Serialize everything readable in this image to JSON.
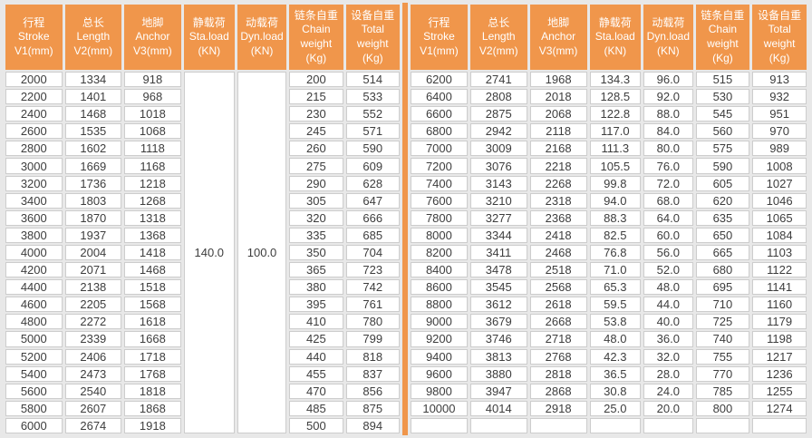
{
  "colors": {
    "page_bg": "#e8e8e8",
    "header_bg": "#f0964b",
    "divider": "#f0964b",
    "cell_border": "#cdcdcd",
    "cell_text": "#3d3d3d",
    "header_text": "#ffffff"
  },
  "tables": {
    "left": {
      "headers": [
        [
          "行程",
          "Stroke",
          "V1(mm)"
        ],
        [
          "总长",
          "Length",
          "V2(mm)"
        ],
        [
          "地脚",
          "Anchor",
          "V3(mm)"
        ],
        [
          "静载荷",
          "Sta.load",
          "(KN)"
        ],
        [
          "动载荷",
          "Dyn.load",
          "(KN)"
        ],
        [
          "链条自重",
          "Chain",
          "weight",
          "(Kg)"
        ],
        [
          "设备自重",
          "Total",
          "weight",
          "(Kg)"
        ]
      ],
      "merges": [
        {
          "col": 3,
          "value": "140.0"
        },
        {
          "col": 4,
          "value": "100.0"
        }
      ],
      "rows": [
        [
          "2000",
          "1334",
          "918",
          null,
          null,
          "200",
          "514"
        ],
        [
          "2200",
          "1401",
          "968",
          null,
          null,
          "215",
          "533"
        ],
        [
          "2400",
          "1468",
          "1018",
          null,
          null,
          "230",
          "552"
        ],
        [
          "2600",
          "1535",
          "1068",
          null,
          null,
          "245",
          "571"
        ],
        [
          "2800",
          "1602",
          "1118",
          null,
          null,
          "260",
          "590"
        ],
        [
          "3000",
          "1669",
          "1168",
          null,
          null,
          "275",
          "609"
        ],
        [
          "3200",
          "1736",
          "1218",
          null,
          null,
          "290",
          "628"
        ],
        [
          "3400",
          "1803",
          "1268",
          null,
          null,
          "305",
          "647"
        ],
        [
          "3600",
          "1870",
          "1318",
          null,
          null,
          "320",
          "666"
        ],
        [
          "3800",
          "1937",
          "1368",
          null,
          null,
          "335",
          "685"
        ],
        [
          "4000",
          "2004",
          "1418",
          null,
          null,
          "350",
          "704"
        ],
        [
          "4200",
          "2071",
          "1468",
          null,
          null,
          "365",
          "723"
        ],
        [
          "4400",
          "2138",
          "1518",
          null,
          null,
          "380",
          "742"
        ],
        [
          "4600",
          "2205",
          "1568",
          null,
          null,
          "395",
          "761"
        ],
        [
          "4800",
          "2272",
          "1618",
          null,
          null,
          "410",
          "780"
        ],
        [
          "5000",
          "2339",
          "1668",
          null,
          null,
          "425",
          "799"
        ],
        [
          "5200",
          "2406",
          "1718",
          null,
          null,
          "440",
          "818"
        ],
        [
          "5400",
          "2473",
          "1768",
          null,
          null,
          "455",
          "837"
        ],
        [
          "5600",
          "2540",
          "1818",
          null,
          null,
          "470",
          "856"
        ],
        [
          "5800",
          "2607",
          "1868",
          null,
          null,
          "485",
          "875"
        ],
        [
          "6000",
          "2674",
          "1918",
          null,
          null,
          "500",
          "894"
        ]
      ]
    },
    "right": {
      "headers": [
        [
          "行程",
          "Stroke",
          "V1(mm)"
        ],
        [
          "总长",
          "Length",
          "V2(mm)"
        ],
        [
          "地脚",
          "Anchor",
          "V3(mm)"
        ],
        [
          "静载荷",
          "Sta.load",
          "(KN)"
        ],
        [
          "动载荷",
          "Dyn.load",
          "(KN)"
        ],
        [
          "链条自重",
          "Chain",
          "weight",
          "(Kg)"
        ],
        [
          "设备自重",
          "Total",
          "weight",
          "(Kg)"
        ]
      ],
      "merges": [],
      "rows": [
        [
          "6200",
          "2741",
          "1968",
          "134.3",
          "96.0",
          "515",
          "913"
        ],
        [
          "6400",
          "2808",
          "2018",
          "128.5",
          "92.0",
          "530",
          "932"
        ],
        [
          "6600",
          "2875",
          "2068",
          "122.8",
          "88.0",
          "545",
          "951"
        ],
        [
          "6800",
          "2942",
          "2118",
          "117.0",
          "84.0",
          "560",
          "970"
        ],
        [
          "7000",
          "3009",
          "2168",
          "111.3",
          "80.0",
          "575",
          "989"
        ],
        [
          "7200",
          "3076",
          "2218",
          "105.5",
          "76.0",
          "590",
          "1008"
        ],
        [
          "7400",
          "3143",
          "2268",
          "99.8",
          "72.0",
          "605",
          "1027"
        ],
        [
          "7600",
          "3210",
          "2318",
          "94.0",
          "68.0",
          "620",
          "1046"
        ],
        [
          "7800",
          "3277",
          "2368",
          "88.3",
          "64.0",
          "635",
          "1065"
        ],
        [
          "8000",
          "3344",
          "2418",
          "82.5",
          "60.0",
          "650",
          "1084"
        ],
        [
          "8200",
          "3411",
          "2468",
          "76.8",
          "56.0",
          "665",
          "1103"
        ],
        [
          "8400",
          "3478",
          "2518",
          "71.0",
          "52.0",
          "680",
          "1122"
        ],
        [
          "8600",
          "3545",
          "2568",
          "65.3",
          "48.0",
          "695",
          "1141"
        ],
        [
          "8800",
          "3612",
          "2618",
          "59.5",
          "44.0",
          "710",
          "1160"
        ],
        [
          "9000",
          "3679",
          "2668",
          "53.8",
          "40.0",
          "725",
          "1179"
        ],
        [
          "9200",
          "3746",
          "2718",
          "48.0",
          "36.0",
          "740",
          "1198"
        ],
        [
          "9400",
          "3813",
          "2768",
          "42.3",
          "32.0",
          "755",
          "1217"
        ],
        [
          "9600",
          "3880",
          "2818",
          "36.5",
          "28.0",
          "770",
          "1236"
        ],
        [
          "9800",
          "3947",
          "2868",
          "30.8",
          "24.0",
          "785",
          "1255"
        ],
        [
          "10000",
          "4014",
          "2918",
          "25.0",
          "20.0",
          "800",
          "1274"
        ],
        [
          "",
          "",
          "",
          "",
          "",
          "",
          ""
        ]
      ]
    }
  }
}
